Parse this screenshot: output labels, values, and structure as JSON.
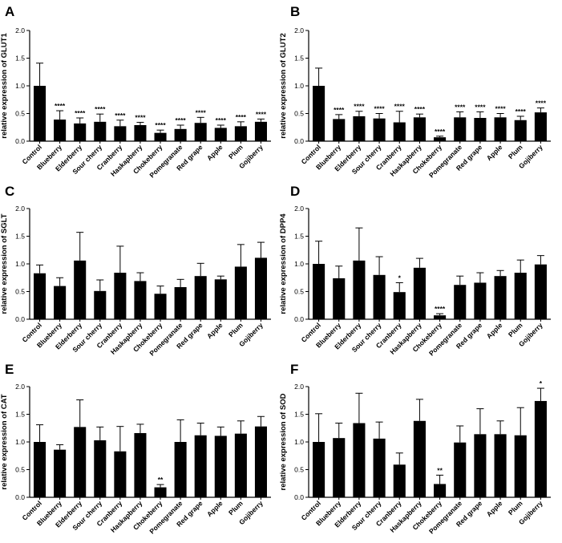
{
  "chart_data": [
    {
      "type": "bar",
      "panel": "A",
      "ylabel": "relative expression of GLUT1",
      "ylim": [
        0,
        2.0
      ],
      "yticks": [
        "0.0",
        "0.5",
        "1.0",
        "1.5",
        "2.0"
      ],
      "categories": [
        "Control",
        "Blueberry",
        "Elderberry",
        "Sour cherry",
        "Cranberry",
        "Haskapberry",
        "Chokeberry",
        "Pomegranate",
        "Red grape",
        "Apple",
        "Plum",
        "Gojiberry"
      ],
      "values": [
        1.0,
        0.39,
        0.32,
        0.35,
        0.27,
        0.29,
        0.15,
        0.22,
        0.33,
        0.24,
        0.27,
        0.35
      ],
      "errors": [
        0.41,
        0.16,
        0.1,
        0.14,
        0.11,
        0.05,
        0.05,
        0.07,
        0.1,
        0.05,
        0.08,
        0.05
      ],
      "significance": [
        "",
        "****",
        "****",
        "****",
        "****",
        "****",
        "****",
        "****",
        "****",
        "****",
        "****",
        "****"
      ],
      "bar_color": "#000000"
    },
    {
      "type": "bar",
      "panel": "B",
      "ylabel": "relative expression of GLUT2",
      "ylim": [
        0,
        2.0
      ],
      "yticks": [
        "0.0",
        "0.5",
        "1.0",
        "1.5",
        "2.0"
      ],
      "categories": [
        "Control",
        "Blueberry",
        "Elderberry",
        "Sour cherry",
        "Cranberry",
        "Haskapberry",
        "Chokeberry",
        "Pomegranate",
        "Red grape",
        "Apple",
        "Plum",
        "Gojiberry"
      ],
      "values": [
        1.0,
        0.4,
        0.45,
        0.41,
        0.34,
        0.43,
        0.07,
        0.43,
        0.42,
        0.43,
        0.38,
        0.52
      ],
      "errors": [
        0.32,
        0.08,
        0.09,
        0.09,
        0.2,
        0.06,
        0.02,
        0.1,
        0.11,
        0.07,
        0.07,
        0.08
      ],
      "significance": [
        "",
        "****",
        "****",
        "****",
        "****",
        "****",
        "****",
        "****",
        "****",
        "****",
        "****",
        "****"
      ],
      "bar_color": "#000000"
    },
    {
      "type": "bar",
      "panel": "C",
      "ylabel": "relative expression of SGLT",
      "ylim": [
        0,
        2.0
      ],
      "yticks": [
        "0.0",
        "0.5",
        "1.0",
        "1.5",
        "2.0"
      ],
      "categories": [
        "Control",
        "Blueberry",
        "Elderberry",
        "Sour cherry",
        "Cranberry",
        "Haskapberry",
        "Chokeberry",
        "Pomegranate",
        "Red grape",
        "Apple",
        "Plum",
        "Gojiberry"
      ],
      "values": [
        0.83,
        0.6,
        1.06,
        0.51,
        0.84,
        0.69,
        0.46,
        0.58,
        0.78,
        0.72,
        0.95,
        1.11
      ],
      "errors": [
        0.15,
        0.15,
        0.51,
        0.2,
        0.48,
        0.15,
        0.14,
        0.14,
        0.23,
        0.06,
        0.4,
        0.28
      ],
      "significance": [
        "",
        "",
        "",
        "",
        "",
        "",
        "",
        "",
        "",
        "",
        "",
        ""
      ],
      "bar_color": "#000000"
    },
    {
      "type": "bar",
      "panel": "D",
      "ylabel": "relative expression of DPP4",
      "ylim": [
        0,
        2.0
      ],
      "yticks": [
        "0.0",
        "0.5",
        "1.0",
        "1.5",
        "2.0"
      ],
      "categories": [
        "Control",
        "Blueberry",
        "Elderberry",
        "Sour cherry",
        "Cranberry",
        "Haskapberry",
        "Chokeberry",
        "Pomegranate",
        "Red grape",
        "Apple",
        "Plum",
        "Gojiberry"
      ],
      "values": [
        1.0,
        0.74,
        1.06,
        0.8,
        0.49,
        0.93,
        0.07,
        0.62,
        0.66,
        0.78,
        0.84,
        0.99
      ],
      "errors": [
        0.41,
        0.22,
        0.59,
        0.33,
        0.17,
        0.17,
        0.03,
        0.16,
        0.18,
        0.1,
        0.23,
        0.16
      ],
      "significance": [
        "",
        "",
        "",
        "",
        "*",
        "",
        "****",
        "",
        "",
        "",
        "",
        ""
      ],
      "bar_color": "#000000"
    },
    {
      "type": "bar",
      "panel": "E",
      "ylabel": "relative expression of CAT",
      "ylim": [
        0,
        2.0
      ],
      "yticks": [
        "0.0",
        "0.5",
        "1.0",
        "1.5",
        "2.0"
      ],
      "categories": [
        "Control",
        "Blueberry",
        "Elderberry",
        "Sour cherry",
        "Cranberry",
        "Haskapberry",
        "Chokeberry",
        "Pomegranate",
        "Red grape",
        "Apple",
        "Plum",
        "Gojiberry"
      ],
      "values": [
        1.0,
        0.86,
        1.27,
        1.03,
        0.83,
        1.16,
        0.18,
        1.0,
        1.12,
        1.11,
        1.15,
        1.28
      ],
      "errors": [
        0.31,
        0.09,
        0.49,
        0.24,
        0.45,
        0.16,
        0.05,
        0.4,
        0.22,
        0.16,
        0.23,
        0.18
      ],
      "significance": [
        "",
        "",
        "",
        "",
        "",
        "",
        "**",
        "",
        "",
        "",
        "",
        ""
      ],
      "bar_color": "#000000"
    },
    {
      "type": "bar",
      "panel": "F",
      "ylabel": "relative expression of SOD",
      "ylim": [
        0,
        2.0
      ],
      "yticks": [
        "0.0",
        "0.5",
        "1.0",
        "1.5",
        "2.0"
      ],
      "categories": [
        "Control",
        "Blueberry",
        "Elderberry",
        "Sour cherry",
        "Cranberry",
        "Haskapberry",
        "Chokeberry",
        "Pomegranate",
        "Red grape",
        "Apple",
        "Plum",
        "Gojiberry"
      ],
      "values": [
        1.0,
        1.07,
        1.34,
        1.06,
        0.59,
        1.38,
        0.24,
        0.99,
        1.14,
        1.14,
        1.12,
        1.74
      ],
      "errors": [
        0.51,
        0.27,
        0.54,
        0.3,
        0.21,
        0.39,
        0.16,
        0.3,
        0.46,
        0.24,
        0.5,
        0.23
      ],
      "significance": [
        "",
        "",
        "",
        "",
        "",
        "",
        "**",
        "",
        "",
        "",
        "",
        "*"
      ],
      "bar_color": "#000000"
    }
  ]
}
